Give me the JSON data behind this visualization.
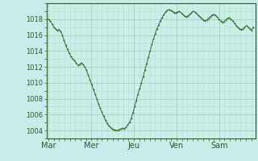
{
  "background_color": "#c8ece8",
  "plot_bg_color": "#cceee8",
  "line_color": "#2d6e2d",
  "marker_color": "#2d6e2d",
  "grid_color_major": "#a8ccc8",
  "grid_color_minor": "#b8dcd8",
  "ylim": [
    1003.0,
    1020.0
  ],
  "yticks": [
    1004,
    1006,
    1008,
    1010,
    1012,
    1014,
    1016,
    1018
  ],
  "xtick_labels": [
    "Mar",
    "Mer",
    "Jeu",
    "Ven",
    "Sam"
  ],
  "xtick_positions": [
    0.0,
    1.0,
    2.0,
    3.0,
    4.0
  ],
  "xlim": [
    -0.05,
    4.85
  ],
  "days": 4.8,
  "pressure_values": [
    1018.0,
    1017.8,
    1017.4,
    1017.0,
    1016.8,
    1016.6,
    1016.7,
    1016.5,
    1016.0,
    1015.3,
    1014.7,
    1014.2,
    1013.7,
    1013.3,
    1013.0,
    1012.8,
    1012.5,
    1012.2,
    1012.3,
    1012.5,
    1012.3,
    1012.0,
    1011.6,
    1011.0,
    1010.4,
    1009.8,
    1009.2,
    1008.6,
    1008.0,
    1007.4,
    1006.8,
    1006.3,
    1005.8,
    1005.3,
    1004.9,
    1004.6,
    1004.4,
    1004.2,
    1004.1,
    1004.05,
    1004.0,
    1004.1,
    1004.2,
    1004.3,
    1004.2,
    1004.4,
    1004.7,
    1005.0,
    1005.5,
    1006.2,
    1007.0,
    1007.8,
    1008.6,
    1009.3,
    1010.0,
    1010.8,
    1011.6,
    1012.4,
    1013.2,
    1014.0,
    1014.8,
    1015.5,
    1016.2,
    1016.8,
    1017.3,
    1017.8,
    1018.2,
    1018.6,
    1018.9,
    1019.1,
    1019.2,
    1019.1,
    1019.0,
    1018.8,
    1018.8,
    1018.9,
    1019.0,
    1018.8,
    1018.6,
    1018.4,
    1018.3,
    1018.4,
    1018.6,
    1018.8,
    1019.0,
    1018.9,
    1018.7,
    1018.5,
    1018.3,
    1018.1,
    1017.9,
    1017.8,
    1017.9,
    1018.1,
    1018.3,
    1018.5,
    1018.6,
    1018.5,
    1018.3,
    1018.0,
    1017.8,
    1017.6,
    1017.7,
    1017.9,
    1018.1,
    1018.2,
    1018.0,
    1017.8,
    1017.5,
    1017.2,
    1017.0,
    1016.8,
    1016.7,
    1016.8,
    1017.0,
    1017.2,
    1017.0,
    1016.8,
    1016.6,
    1017.0
  ],
  "spine_color": "#2a5a2a",
  "tick_color": "#2a5a2a",
  "label_color": "#2a5a2a",
  "tick_fontsize": 6,
  "label_fontsize": 7
}
